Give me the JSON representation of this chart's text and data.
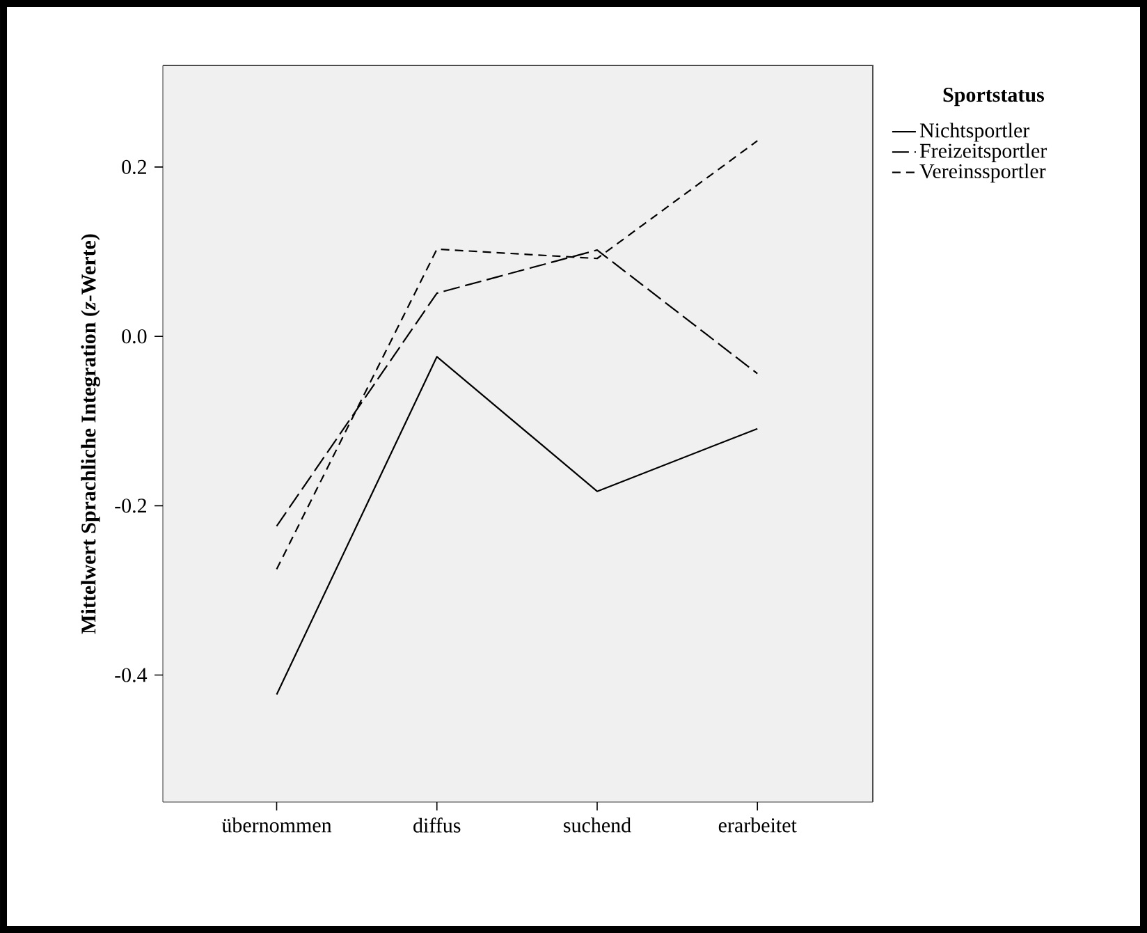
{
  "chart_data": {
    "type": "line",
    "categories": [
      "übernommen",
      "diffus",
      "suchend",
      "erarbeitet"
    ],
    "ylabel": "Mittelwert Sprachliche Integration (*z*-Werte)",
    "legend_title": "Sportstatus",
    "series": [
      {
        "name": "Nichtsportler",
        "color": "#000000",
        "line_style": "solid",
        "values": [
          -0.423,
          -0.024,
          -0.183,
          -0.109
        ]
      },
      {
        "name": "Freizeitsportler",
        "color": "#000000",
        "line_style": "dashed",
        "values": [
          -0.224,
          0.051,
          0.102,
          -0.044
        ]
      },
      {
        "name": "Vereinssportler",
        "color": "#000000",
        "line_style": "dashed",
        "values": [
          -0.275,
          0.103,
          0.092,
          0.231
        ]
      }
    ],
    "ylim": [
      -0.55,
      0.32
    ],
    "yticks": [
      {
        "value": -0.4,
        "label": "-0.4"
      },
      {
        "value": -0.2,
        "label": "-0.2"
      },
      {
        "value": 0,
        "label": "0.0"
      },
      {
        "value": 0.2,
        "label": "0.2"
      }
    ],
    "grid": false,
    "legend": "top right",
    "marker": "none"
  }
}
